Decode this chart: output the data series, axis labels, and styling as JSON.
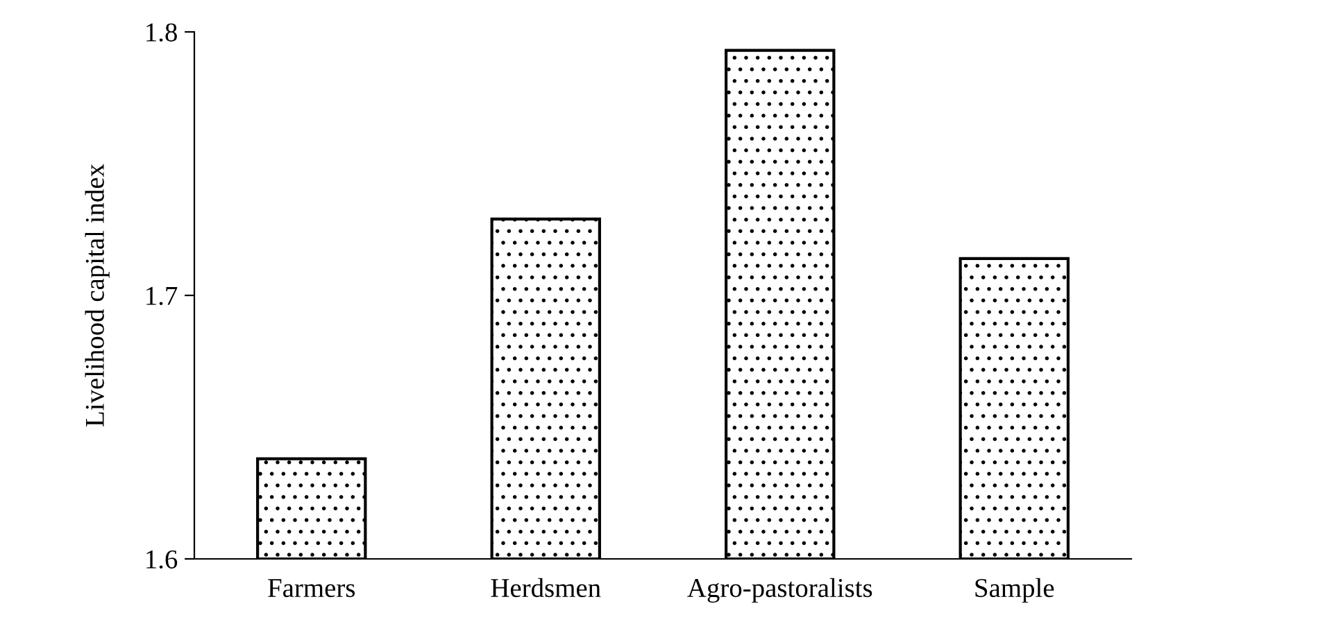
{
  "chart_data": {
    "type": "bar",
    "ylabel": "Livelihood capital index",
    "categories": [
      "Farmers",
      "Herdsmen",
      "Agro-pastoralists",
      "Sample"
    ],
    "values": [
      1.638,
      1.729,
      1.793,
      1.714
    ],
    "color": "#000000",
    "ylim": [
      1.6,
      1.8
    ],
    "yticks": [
      1.6,
      1.7,
      1.8
    ],
    "grid": false,
    "legend": false
  }
}
